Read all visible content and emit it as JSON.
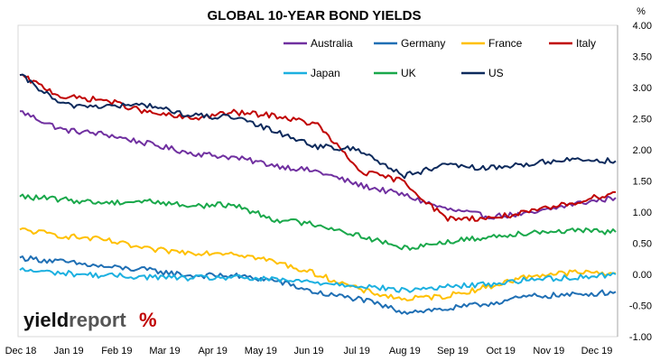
{
  "chart_data": {
    "type": "line",
    "title": "GLOBAL 10-YEAR BOND YIELDS",
    "ylabel": "%",
    "ylim": [
      -1.0,
      4.0
    ],
    "y_ticks": [
      "4.00",
      "3.50",
      "3.00",
      "2.50",
      "2.00",
      "1.50",
      "1.00",
      "0.50",
      "0.00",
      "-0.50",
      "-1.00"
    ],
    "x_ticks": [
      "Dec 18",
      "Jan 19",
      "Feb 19",
      "Mar 19",
      "Apr 19",
      "May 19",
      "Jun 19",
      "Jul 19",
      "Aug 19",
      "Sep 19",
      "Oct 19",
      "Nov 19",
      "Dec 19"
    ],
    "grid": false,
    "legend_position": "top-right",
    "series": [
      {
        "name": "Australia",
        "color": "#7030A0",
        "values": [
          2.62,
          2.32,
          2.25,
          2.1,
          1.95,
          1.88,
          1.75,
          1.65,
          1.43,
          1.28,
          1.05,
          0.93,
          0.97,
          1.13,
          1.23
        ]
      },
      {
        "name": "Germany",
        "color": "#1F6FB4",
        "values": [
          0.27,
          0.2,
          0.12,
          0.07,
          -0.02,
          -0.02,
          -0.1,
          -0.3,
          -0.4,
          -0.6,
          -0.56,
          -0.47,
          -0.35,
          -0.33,
          -0.28
        ]
      },
      {
        "name": "France",
        "color": "#FFC000",
        "values": [
          0.72,
          0.62,
          0.55,
          0.4,
          0.35,
          0.35,
          0.2,
          0.0,
          -0.25,
          -0.4,
          -0.35,
          -0.2,
          -0.02,
          0.03,
          0.02
        ]
      },
      {
        "name": "Italy",
        "color": "#C00000",
        "values": [
          3.2,
          2.85,
          2.8,
          2.6,
          2.5,
          2.6,
          2.55,
          2.4,
          1.65,
          1.5,
          0.9,
          0.9,
          1.0,
          1.15,
          1.32
        ]
      },
      {
        "name": "Japan",
        "color": "#1CB0E0",
        "values": [
          0.07,
          0.02,
          -0.02,
          -0.04,
          -0.06,
          -0.05,
          -0.09,
          -0.13,
          -0.18,
          -0.26,
          -0.2,
          -0.16,
          -0.08,
          -0.05,
          0.0
        ]
      },
      {
        "name": "UK",
        "color": "#1AA84B",
        "values": [
          1.25,
          1.2,
          1.15,
          1.18,
          1.1,
          1.12,
          0.88,
          0.8,
          0.62,
          0.42,
          0.52,
          0.6,
          0.68,
          0.7,
          0.68
        ]
      },
      {
        "name": "US",
        "color": "#0D2A5C",
        "values": [
          3.2,
          2.72,
          2.7,
          2.72,
          2.55,
          2.52,
          2.3,
          2.05,
          2.0,
          1.58,
          1.75,
          1.7,
          1.78,
          1.85,
          1.82
        ]
      }
    ]
  },
  "logo": {
    "text_a": "yield",
    "text_b": "report",
    "symbol": "%"
  }
}
